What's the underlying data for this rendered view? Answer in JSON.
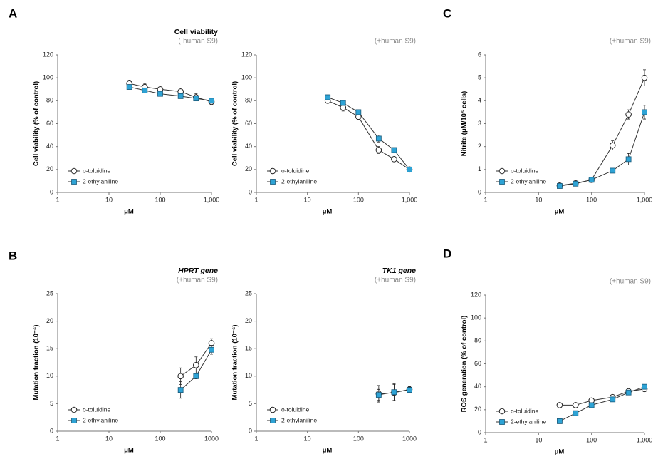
{
  "panel_labels": [
    "A",
    "B",
    "C",
    "D"
  ],
  "chart_data": [
    {
      "type": "line",
      "title": "Cell viability",
      "subtitle": "(-human S9)",
      "y_label": "Cell viability (% of control)",
      "x_label": "μM",
      "xscale": "log",
      "xlim": [
        1,
        1000
      ],
      "xticks": [
        1,
        10,
        100,
        {
          "value": 1000,
          "label": "1,000"
        }
      ],
      "ylim": [
        0,
        120
      ],
      "yticks": [
        0,
        20,
        40,
        60,
        80,
        100,
        120
      ],
      "legend": "lower left",
      "x": [
        25,
        50,
        100,
        250,
        500,
        1000
      ],
      "series": [
        {
          "name": "o-toluidine",
          "color": "#ffffff",
          "marker": "circle",
          "values": [
            95,
            92,
            90,
            88,
            83,
            79
          ],
          "errors": [
            3,
            3,
            3,
            3,
            3,
            2
          ]
        },
        {
          "name": "2-ethylaniline",
          "color": "#2ea3d5",
          "marker": "square",
          "values": [
            92,
            89,
            86,
            84,
            82,
            80
          ],
          "errors": [
            2,
            2,
            2,
            2,
            2,
            2
          ]
        }
      ]
    },
    {
      "type": "line",
      "subtitle": "(+human S9)",
      "y_label": "Cell viability (% of control)",
      "x_label": "μM",
      "xscale": "log",
      "xlim": [
        1,
        1000
      ],
      "xticks": [
        1,
        10,
        100,
        {
          "value": 1000,
          "label": "1,000"
        }
      ],
      "ylim": [
        0,
        120
      ],
      "yticks": [
        0,
        20,
        40,
        60,
        80,
        100,
        120
      ],
      "legend": "lower left",
      "x": [
        25,
        50,
        100,
        250,
        500,
        1000
      ],
      "series": [
        {
          "name": "o-toluidine",
          "color": "#ffffff",
          "marker": "circle",
          "values": [
            80,
            74,
            66,
            37,
            29,
            20
          ],
          "errors": [
            2,
            3,
            2,
            3,
            1,
            1
          ]
        },
        {
          "name": "2-ethylaniline",
          "color": "#2ea3d5",
          "marker": "square",
          "values": [
            83,
            78,
            70,
            47,
            37,
            20
          ],
          "errors": [
            2,
            1,
            1,
            3,
            1,
            1
          ]
        }
      ]
    },
    {
      "type": "line",
      "subtitle": "(+human S9)",
      "y_label": "Nitrite (μM/10⁵ cells)",
      "x_label": "μM",
      "xscale": "log",
      "xlim": [
        1,
        1000
      ],
      "xticks": [
        1,
        10,
        100,
        {
          "value": 1000,
          "label": "1,000"
        }
      ],
      "ylim": [
        0,
        6
      ],
      "yticks": [
        0,
        1,
        2,
        3,
        4,
        5,
        6
      ],
      "legend": "lower left",
      "x": [
        25,
        50,
        100,
        250,
        500,
        1000
      ],
      "series": [
        {
          "name": "o-toluidine",
          "color": "#ffffff",
          "marker": "circle",
          "values": [
            0.3,
            0.4,
            0.55,
            2.05,
            3.4,
            5.0
          ],
          "errors": [
            0.05,
            0.05,
            0.05,
            0.2,
            0.2,
            0.35
          ]
        },
        {
          "name": "2-ethylaniline",
          "color": "#2ea3d5",
          "marker": "square",
          "values": [
            0.28,
            0.38,
            0.55,
            0.95,
            1.45,
            3.5
          ],
          "errors": [
            0.05,
            0.05,
            0.05,
            0.05,
            0.25,
            0.3
          ]
        }
      ]
    },
    {
      "type": "line",
      "title": "HPRT gene",
      "title_italic": true,
      "subtitle": "(+human S9)",
      "y_label": "Mutation fraction (10⁻⁶)",
      "x_label": "μM",
      "xscale": "log",
      "xlim": [
        1,
        1000
      ],
      "xticks": [
        1,
        10,
        100,
        1000
      ],
      "ylim": [
        0,
        25
      ],
      "yticks": [
        0,
        5,
        10,
        15,
        20,
        25
      ],
      "legend": "lower left",
      "x": [
        250,
        500,
        1000
      ],
      "series": [
        {
          "name": "o-toluidine",
          "color": "#ffffff",
          "marker": "circle",
          "values": [
            10,
            12,
            16
          ],
          "errors": [
            1.5,
            1.5,
            0.8
          ]
        },
        {
          "name": "2-ethylaniline",
          "color": "#2ea3d5",
          "marker": "square",
          "values": [
            7.5,
            10,
            14.8
          ],
          "errors": [
            1.5,
            0.5,
            0.8
          ]
        }
      ]
    },
    {
      "type": "line",
      "title": "TK1 gene",
      "title_italic": true,
      "subtitle": "(+human S9)",
      "y_label": "Mutation fraction (10⁻⁶)",
      "x_label": "μM",
      "xscale": "log",
      "xlim": [
        1,
        1000
      ],
      "xticks": [
        1,
        10,
        100,
        1000
      ],
      "ylim": [
        0,
        25
      ],
      "yticks": [
        0,
        5,
        10,
        15,
        20,
        25
      ],
      "legend": "lower left",
      "x": [
        250,
        500,
        1000
      ],
      "series": [
        {
          "name": "o-toluidine",
          "color": "#ffffff",
          "marker": "circle",
          "values": [
            6.8,
            7.0,
            7.6
          ],
          "errors": [
            1.5,
            1.5,
            0.5
          ]
        },
        {
          "name": "2-ethylaniline",
          "color": "#2ea3d5",
          "marker": "square",
          "values": [
            6.6,
            7.1,
            7.5
          ],
          "errors": [
            1,
            1.5,
            0.5
          ]
        }
      ]
    },
    {
      "type": "line",
      "subtitle": "(+human S9)",
      "y_label": "ROS generation (% of control)",
      "x_label": "μM",
      "xscale": "log",
      "xlim": [
        1,
        1000
      ],
      "xticks": [
        1,
        10,
        100,
        {
          "value": 1000,
          "label": "1,000"
        }
      ],
      "ylim": [
        0,
        120
      ],
      "yticks": [
        0,
        20,
        40,
        60,
        80,
        100,
        120
      ],
      "legend": "lower left",
      "x": [
        25,
        50,
        100,
        250,
        500,
        1000
      ],
      "series": [
        {
          "name": "o-toluidine",
          "color": "#ffffff",
          "marker": "circle",
          "values": [
            24,
            24,
            28,
            31,
            36,
            38
          ],
          "errors": [
            1,
            1,
            1,
            1,
            1,
            1
          ]
        },
        {
          "name": "2-ethylaniline",
          "color": "#2ea3d5",
          "marker": "square",
          "values": [
            10,
            17,
            24,
            29,
            35,
            40
          ],
          "errors": [
            1,
            1,
            1,
            1,
            1,
            1
          ]
        }
      ]
    }
  ]
}
